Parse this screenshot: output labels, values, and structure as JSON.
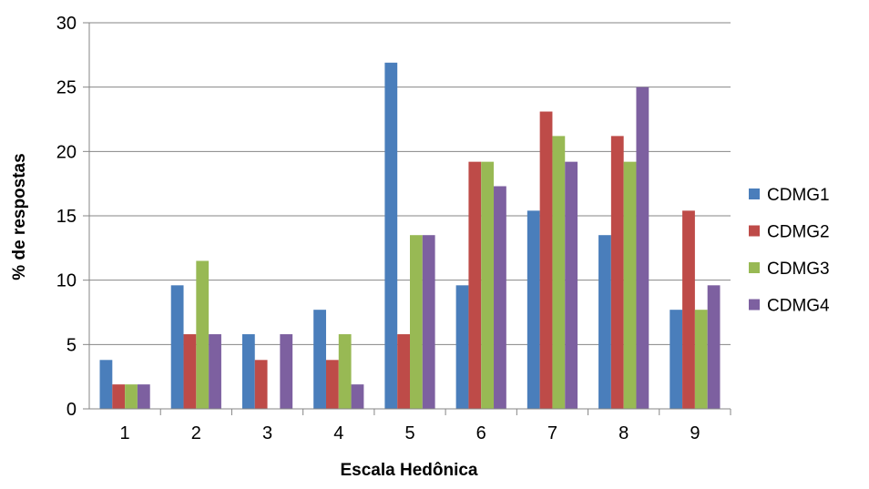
{
  "chart_data": {
    "type": "bar",
    "title": "",
    "xlabel": "Escala Hedônica",
    "ylabel": "% de respostas",
    "categories": [
      "1",
      "2",
      "3",
      "4",
      "5",
      "6",
      "7",
      "8",
      "9"
    ],
    "ylim": [
      0,
      30
    ],
    "yticks": [
      "0",
      "5",
      "10",
      "15",
      "20",
      "25",
      "30"
    ],
    "grid": true,
    "legend_position": "right",
    "series": [
      {
        "name": "CDMG1",
        "color": "#4a7ebb",
        "values": [
          3.8,
          9.6,
          5.8,
          7.7,
          26.9,
          9.6,
          15.4,
          13.5,
          7.7
        ]
      },
      {
        "name": "CDMG2",
        "color": "#be4b48",
        "values": [
          1.9,
          5.8,
          3.8,
          3.8,
          5.8,
          19.2,
          23.1,
          21.2,
          15.4
        ]
      },
      {
        "name": "CDMG3",
        "color": "#98b954",
        "values": [
          1.9,
          11.5,
          0,
          5.8,
          13.5,
          19.2,
          21.2,
          19.2,
          7.7
        ]
      },
      {
        "name": "CDMG4",
        "color": "#7d60a0",
        "values": [
          1.9,
          5.8,
          5.8,
          1.9,
          13.5,
          17.3,
          19.2,
          25.0,
          9.6
        ]
      }
    ]
  }
}
